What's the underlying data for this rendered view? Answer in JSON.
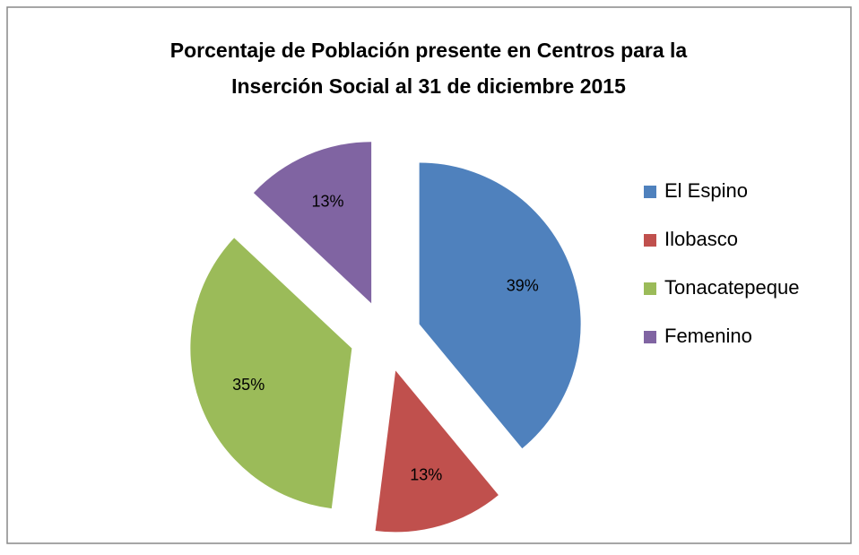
{
  "chart_data": {
    "type": "pie",
    "title": [
      "Porcentaje de Población presente en Centros para la",
      "Inserción Social al 31 de diciembre 2015"
    ],
    "categories": [
      "El Espino",
      "Ilobasco",
      "Tonacatepeque",
      "Femenino"
    ],
    "values": [
      39,
      13,
      35,
      13
    ],
    "value_labels": [
      "39%",
      "13%",
      "35%",
      "13%"
    ],
    "colors": [
      "#4f81bd",
      "#c0504d",
      "#9bbb59",
      "#8064a2"
    ],
    "legend": "right",
    "exploded": true
  }
}
